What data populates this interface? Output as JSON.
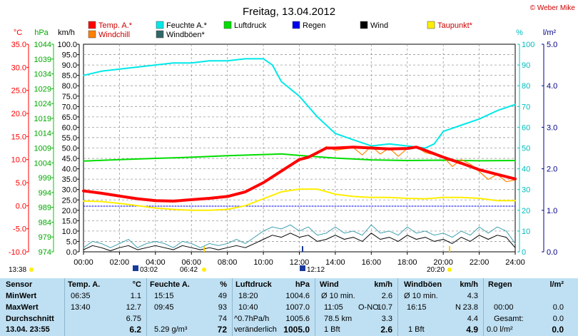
{
  "title": "Freitag, 13.04.2012",
  "copyright": "© Weber Mike",
  "legend": [
    {
      "label": "Temp. A.*",
      "color": "#ff0000"
    },
    {
      "label": "Feuchte A.*",
      "color": "#00e8e8"
    },
    {
      "label": "Luftdruck",
      "color": "#00dd00"
    },
    {
      "label": "Regen",
      "color": "#0000ee"
    },
    {
      "label": "Wind",
      "color": "#000000"
    },
    {
      "label": "Taupunkt*",
      "color": "#ffee00"
    },
    {
      "label": "Windchill",
      "color": "#ff7f00"
    },
    {
      "label": "Windböen*",
      "color": "#336666"
    }
  ],
  "axis_units": {
    "temp": "°C",
    "pressure": "hPa",
    "wind": "km/h",
    "humidity": "%",
    "rain": "l/m²"
  },
  "markers": {
    "left_time": "13:38",
    "sunrise": "03:02",
    "twilight_am": "06:42",
    "noon": "12:12",
    "twilight_pm": "20:20"
  },
  "chart_data": {
    "type": "line",
    "x_ticks": [
      "00:00",
      "02:00",
      "04:00",
      "06:00",
      "08:00",
      "10:00",
      "12:00",
      "14:00",
      "16:00",
      "18:00",
      "20:00",
      "22:00",
      "24:00"
    ],
    "axes": {
      "temp": {
        "min": -10,
        "max": 35,
        "ticks": [
          "35.0",
          "30.0",
          "25.0",
          "20.0",
          "15.0",
          "10.0",
          "5.0",
          "0.0",
          "-5.0",
          "-10.0"
        ]
      },
      "pressure": {
        "min": 974,
        "max": 1044,
        "ticks": [
          "1044",
          "1039",
          "1034",
          "1029",
          "1024",
          "1019",
          "1014",
          "1009",
          "1004",
          "999",
          "994",
          "989",
          "984",
          "979",
          "974"
        ]
      },
      "wind": {
        "min": 0,
        "max": 100,
        "ticks": [
          "100.0",
          "95.0",
          "90.0",
          "85.0",
          "80.0",
          "75.0",
          "70.0",
          "65.0",
          "60.0",
          "55.0",
          "50.0",
          "45.0",
          "40.0",
          "35.0",
          "30.0",
          "25.0",
          "20.0",
          "15.0",
          "10.0",
          "5.0",
          "0.0"
        ]
      },
      "humidity": {
        "min": 0,
        "max": 100,
        "ticks": [
          "100",
          "90",
          "80",
          "70",
          "60",
          "50",
          "40",
          "30",
          "20",
          "10",
          "0"
        ]
      },
      "rain": {
        "min": 0,
        "max": 5,
        "ticks": [
          "5.0",
          "4.0",
          "3.0",
          "2.0",
          "1.0",
          "0.0"
        ]
      }
    },
    "series": [
      {
        "name": "Temp. A.*",
        "axis": "temp",
        "x": [
          0,
          1,
          2,
          3,
          4,
          5,
          6,
          7,
          8,
          9,
          10,
          11,
          12,
          12.5,
          13,
          13.5,
          14,
          15,
          16,
          17,
          18,
          18.5,
          19,
          20,
          21,
          22,
          23,
          24
        ],
        "y": [
          3.2,
          2.7,
          2.1,
          1.5,
          1.1,
          1.0,
          1.3,
          1.6,
          2.0,
          3.0,
          5.0,
          7.5,
          10.0,
          10.5,
          11.5,
          12.5,
          12.5,
          12.7,
          12.5,
          12.3,
          12.4,
          12.7,
          12.0,
          10.5,
          9.2,
          7.8,
          6.8,
          5.8
        ]
      },
      {
        "name": "Feuchte A.*",
        "axis": "humidity",
        "x": [
          0,
          1,
          2,
          3,
          4,
          5,
          6,
          7,
          8,
          9,
          10,
          10.5,
          11,
          12,
          13,
          14,
          15,
          16,
          17,
          18,
          19,
          19.5,
          20,
          21,
          22,
          23,
          24
        ],
        "y": [
          85,
          87,
          88,
          89,
          90,
          91,
          91,
          92,
          92,
          93,
          93,
          90,
          82,
          75,
          65,
          57,
          54,
          51,
          52,
          51,
          50,
          52,
          58,
          61,
          64,
          68,
          71
        ]
      },
      {
        "name": "Luftdruck",
        "axis": "pressure",
        "x": [
          0,
          2,
          4,
          6,
          8,
          10,
          11,
          12,
          14,
          16,
          18,
          20,
          22,
          24
        ],
        "y": [
          1004.6,
          1005.1,
          1005.5,
          1005.9,
          1006.4,
          1006.8,
          1007.0,
          1006.5,
          1005.6,
          1005.0,
          1004.8,
          1004.9,
          1004.7,
          1004.8
        ]
      },
      {
        "name": "Regen",
        "axis": "rain",
        "x": [
          0,
          24
        ],
        "y": [
          1.1,
          1.1
        ]
      },
      {
        "name": "Taupunkt*",
        "axis": "temp",
        "x": [
          0,
          1,
          2,
          3,
          4,
          5,
          6,
          7,
          8,
          9,
          10,
          11,
          12,
          13,
          14,
          15,
          16,
          17,
          18,
          19,
          20,
          21,
          22,
          23,
          24
        ],
        "y": [
          1.0,
          0.9,
          0.5,
          0.0,
          -0.5,
          -0.8,
          -1.0,
          -1.0,
          -0.8,
          0.0,
          1.5,
          3.0,
          3.6,
          3.6,
          2.5,
          2.0,
          1.8,
          1.8,
          1.6,
          1.5,
          1.8,
          1.8,
          1.6,
          1.1,
          1.1
        ]
      },
      {
        "name": "Windchill",
        "axis": "temp",
        "x": [
          12,
          12.5,
          13,
          13.5,
          14,
          14.5,
          15,
          15.5,
          16,
          16.5,
          17,
          17.5,
          18,
          18.5,
          19,
          20,
          20.5,
          21,
          21.5,
          22,
          22.5,
          23,
          23.5,
          24
        ],
        "y": [
          9.8,
          10.6,
          11.2,
          12.8,
          12.0,
          12.3,
          12.6,
          11.0,
          12.9,
          11.2,
          12.5,
          10.7,
          12.4,
          12.8,
          11.5,
          10.6,
          8.5,
          10.0,
          9.0,
          7.4,
          5.7,
          6.8,
          5.2,
          5.6
        ]
      },
      {
        "name": "Wind",
        "axis": "wind",
        "x": [
          0,
          0.5,
          1,
          1.5,
          2,
          2.5,
          3,
          3.5,
          4,
          4.5,
          5,
          5.5,
          6,
          6.5,
          7,
          7.5,
          8,
          8.5,
          9,
          9.5,
          10,
          10.5,
          11,
          11.5,
          12,
          12.5,
          13,
          13.5,
          14,
          14.5,
          15,
          15.5,
          16,
          16.5,
          17,
          17.5,
          18,
          18.5,
          19,
          19.5,
          20,
          20.5,
          21,
          21.5,
          22,
          22.5,
          23,
          23.5,
          24
        ],
        "y": [
          1,
          3,
          2,
          0.5,
          2,
          3,
          1,
          2,
          3,
          2,
          1,
          3,
          2,
          1,
          2,
          1,
          2,
          3,
          2,
          4,
          6,
          8,
          7,
          9,
          7,
          8,
          5,
          6,
          8,
          6,
          7,
          5,
          9,
          6,
          7,
          5,
          8,
          6,
          7,
          5,
          6,
          4,
          7,
          5,
          8,
          6,
          8,
          7,
          2
        ]
      },
      {
        "name": "Windböen*",
        "axis": "wind",
        "x": [
          0,
          0.5,
          1,
          1.5,
          2,
          2.5,
          3,
          3.5,
          4,
          4.5,
          5,
          5.5,
          6,
          6.5,
          7,
          7.5,
          8,
          8.5,
          9,
          9.5,
          10,
          10.5,
          11,
          11.5,
          12,
          12.5,
          13,
          13.5,
          14,
          14.5,
          15,
          15.5,
          16,
          16.5,
          17,
          17.5,
          18,
          18.5,
          19,
          19.5,
          20,
          20.5,
          21,
          21.5,
          22,
          22.5,
          23,
          23.5,
          24
        ],
        "y": [
          2,
          5,
          4,
          2,
          4,
          6,
          2,
          4,
          5,
          4,
          2,
          5,
          4,
          2,
          4,
          3,
          4,
          6,
          4,
          7,
          10,
          12,
          11,
          13,
          10,
          12,
          8,
          9,
          12,
          9,
          10,
          8,
          13,
          9,
          10,
          8,
          12,
          9,
          10,
          8,
          9,
          7,
          10,
          8,
          12,
          9,
          12,
          10,
          4
        ]
      }
    ]
  },
  "table": {
    "sensor": {
      "header": "Sensor",
      "rows": [
        "MinWert",
        "MaxWert",
        "Durchschnitt",
        "13.04. 23:55"
      ]
    },
    "temp": {
      "header": "Temp. A.",
      "unit": "°C",
      "times": [
        "06:35",
        "13:40",
        "",
        ""
      ],
      "values": [
        "1.1",
        "12.7",
        "6.75",
        "6.2"
      ]
    },
    "humidity": {
      "header": "Feuchte A.",
      "unit": "%",
      "times": [
        "15:15",
        "09:45",
        "",
        "5.29 g/m³"
      ],
      "values": [
        "49",
        "93",
        "74",
        "72"
      ]
    },
    "pressure": {
      "header": "Luftdruck",
      "unit": "hPa",
      "times": [
        "18:20",
        "10:40",
        "^0.7hPa/h",
        "veränderlich"
      ],
      "values": [
        "1004.6",
        "1007.0",
        "1005.6",
        "1005.0"
      ]
    },
    "wind": {
      "header": "Wind",
      "unit": "km/h",
      "col1": [
        "Ø 10 min.",
        "11:05",
        "78.5 km",
        "1 Bft"
      ],
      "col2": [
        "",
        "O-NO",
        "",
        ""
      ],
      "values": [
        "2.6",
        "10.7",
        "3.3",
        "2.6"
      ]
    },
    "gusts": {
      "header": "Windböen",
      "unit": "km/h",
      "col1": [
        "Ø 10 min.",
        "16:15",
        "",
        "1 Bft"
      ],
      "col2": [
        "",
        "N",
        "",
        ""
      ],
      "values": [
        "4.3",
        "23.8",
        "4.4",
        "4.9"
      ]
    },
    "rain": {
      "header": "Regen",
      "unit": "l/m²",
      "col1": [
        "",
        "00:00",
        "Gesamt:",
        "0.0 l/m²"
      ],
      "values": [
        "",
        "0.0",
        "0.0",
        "0.0"
      ]
    }
  }
}
